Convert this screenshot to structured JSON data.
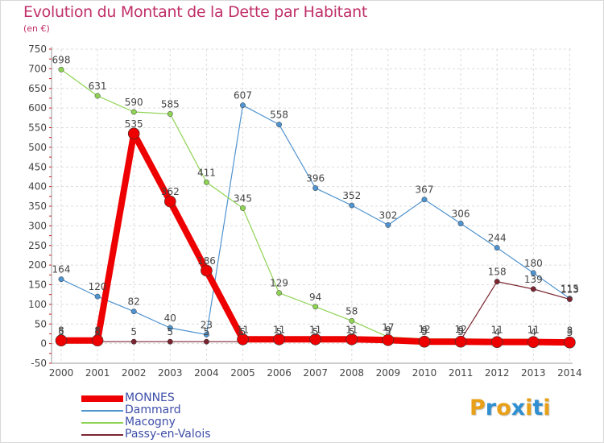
{
  "header": {
    "title": "Evolution du Montant de la Dette par Habitant",
    "unit": "(en €)"
  },
  "logo": {
    "text": "Proxiti",
    "colors": [
      "#e8a018",
      "#2f8fd0",
      "#e8a018",
      "#2f8fd0",
      "#e8a018",
      "#2f8fd0",
      "#e8a018"
    ]
  },
  "chart_data": {
    "type": "line",
    "title": "Evolution du Montant de la Dette par Habitant",
    "ylabel": "(en €)",
    "xlabel": "",
    "ylim": [
      -50,
      750
    ],
    "yticks": [
      -50,
      0,
      50,
      100,
      150,
      200,
      250,
      300,
      350,
      400,
      450,
      500,
      550,
      600,
      650,
      700,
      750
    ],
    "x": [
      "2000",
      "2001",
      "2002",
      "2003",
      "2004",
      "2005",
      "2006",
      "2007",
      "2008",
      "2009",
      "2010",
      "2011",
      "2012",
      "2013",
      "2014"
    ],
    "grid": true,
    "legend_position": "bottom-left",
    "series": [
      {
        "name": "MONNES",
        "color": "#ee0000",
        "values": [
          8,
          8,
          535,
          362,
          186,
          11,
          11,
          11,
          11,
          9,
          5,
          5,
          4,
          4,
          3
        ]
      },
      {
        "name": "Dammard",
        "color": "#4f93cf",
        "values": [
          164,
          120,
          82,
          40,
          23,
          607,
          558,
          396,
          352,
          302,
          367,
          306,
          244,
          180,
          115
        ]
      },
      {
        "name": "Macogny",
        "color": "#8fd354",
        "values": [
          null,
          null,
          590,
          585,
          411,
          345,
          129,
          94,
          58,
          17,
          12,
          12,
          11,
          11,
          8
        ]
      },
      {
        "name": "Passy-en-Valois",
        "color": "#7a2530",
        "values": [
          5,
          5,
          5,
          5,
          5,
          5,
          5,
          5,
          5,
          5,
          9,
          9,
          158,
          139,
          113
        ]
      }
    ],
    "macogny_2000_2001": [
      698,
      631
    ],
    "data_labels": {
      "MONNES": [
        "8",
        "8",
        "535",
        "362",
        "186",
        "11",
        "11",
        "11",
        "11",
        "9",
        "5",
        "5",
        "4",
        "4",
        "3"
      ],
      "Dammard": [
        "164",
        "120",
        "82",
        "40",
        "23",
        "607",
        "558",
        "396",
        "352",
        "302",
        "367",
        "306",
        "244",
        "180",
        "115"
      ],
      "Macogny": [
        "698",
        "631",
        "590",
        "585",
        "411",
        "345",
        "129",
        "94",
        "58",
        "17",
        "12",
        "12",
        "11",
        "11",
        "8"
      ],
      "Passy-en-Valois": [
        "5",
        "5",
        "5",
        "5",
        "5",
        "5",
        "5",
        "5",
        "5",
        "5",
        "9",
        "9",
        "158",
        "139",
        "113"
      ]
    }
  }
}
